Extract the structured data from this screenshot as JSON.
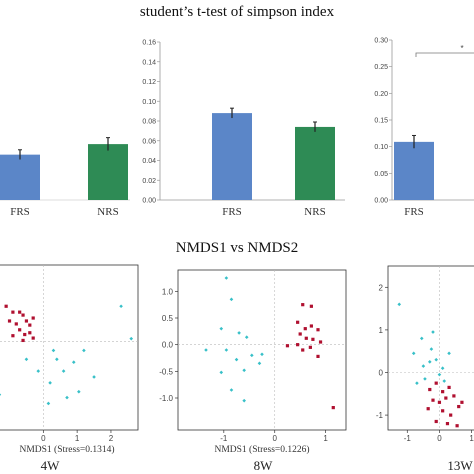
{
  "top_title": "student’s t-test of simpson index",
  "bottom_title": "NMDS1 vs NMDS2",
  "colors": {
    "frs": "#5b86c8",
    "nrs": "#2e8b55",
    "red": "#b01030",
    "cyan": "#38c0c8",
    "err": "#222222"
  },
  "chart_data": [
    {
      "type": "bar",
      "panel": "4W",
      "categories": [
        "FRS",
        "NRS"
      ],
      "values": [
        0.056,
        0.069
      ],
      "errors": [
        0.006,
        0.008
      ],
      "ylim": [
        0,
        0.2
      ],
      "yticks": []
    },
    {
      "type": "bar",
      "panel": "8W",
      "categories": [
        "FRS",
        "NRS"
      ],
      "values": [
        0.088,
        0.074
      ],
      "errors": [
        0.005,
        0.005
      ],
      "ylim": [
        0,
        0.16
      ],
      "yticks": [
        0,
        0.02,
        0.04,
        0.06,
        0.08,
        0.1,
        0.12,
        0.14,
        0.16
      ],
      "ytick_labels": [
        "0.00",
        "0.02",
        "0.04",
        "0.06",
        "0.08",
        "0.10",
        "0.12",
        "0.14",
        "0.16"
      ]
    },
    {
      "type": "bar",
      "panel": "13W",
      "categories": [
        "FRS"
      ],
      "values": [
        0.109
      ],
      "errors": [
        0.012
      ],
      "ylim": [
        0,
        0.3
      ],
      "yticks": [
        0,
        0.05,
        0.1,
        0.15,
        0.2,
        0.25,
        0.3
      ],
      "ytick_labels": [
        "0.00",
        "0.05",
        "0.10",
        "0.15",
        "0.20",
        "0.25",
        "0.30"
      ],
      "significance_marker": "*"
    },
    {
      "type": "scatter",
      "panel": "4W",
      "xlabel": "NMDS1  (Stress=0.1314)",
      "xlim": [
        -1.4,
        2.8
      ],
      "ylim": [
        -1.5,
        1.3
      ],
      "xticks": [
        0,
        1,
        2
      ],
      "xtick_labels": [
        "0",
        "1",
        "2"
      ],
      "yticks": [],
      "red": [
        [
          -1.1,
          0.6
        ],
        [
          -0.9,
          0.5
        ],
        [
          -0.6,
          0.45
        ],
        [
          -0.5,
          0.35
        ],
        [
          -1.0,
          0.35
        ],
        [
          -0.8,
          0.3
        ],
        [
          -0.7,
          0.2
        ],
        [
          -0.55,
          0.12
        ],
        [
          -0.4,
          0.28
        ],
        [
          -0.3,
          0.4
        ],
        [
          -0.9,
          0.1
        ],
        [
          -0.6,
          0.02
        ],
        [
          -0.3,
          0.06
        ],
        [
          -0.7,
          0.5
        ],
        [
          -0.4,
          0.15
        ]
      ],
      "cyan": [
        [
          1.2,
          -0.15
        ],
        [
          0.9,
          -0.35
        ],
        [
          0.6,
          -0.5
        ],
        [
          1.05,
          -0.85
        ],
        [
          0.4,
          -0.3
        ],
        [
          0.2,
          -0.7
        ],
        [
          0.7,
          -0.95
        ],
        [
          0.15,
          -1.05
        ],
        [
          -0.15,
          -0.5
        ],
        [
          -0.5,
          -0.3
        ],
        [
          2.6,
          0.05
        ],
        [
          2.3,
          0.6
        ],
        [
          -1.3,
          -0.9
        ],
        [
          0.3,
          -0.15
        ],
        [
          1.5,
          -0.6
        ]
      ]
    },
    {
      "type": "scatter",
      "panel": "8W",
      "xlabel": "NMDS1  (Stress=0.1226)",
      "xlim": [
        -1.9,
        1.4
      ],
      "ylim": [
        -1.6,
        1.4
      ],
      "xticks": [
        -1,
        0,
        1
      ],
      "xtick_labels": [
        "-1",
        "0",
        "1"
      ],
      "yticks": [
        1.0,
        0.5,
        0.0,
        -0.5,
        -1.0
      ],
      "ytick_labels": [
        "1.0",
        "0.5",
        "0.0",
        "-0.5",
        "-1.0"
      ],
      "red": [
        [
          0.55,
          0.75
        ],
        [
          0.72,
          0.72
        ],
        [
          0.45,
          0.42
        ],
        [
          0.6,
          0.3
        ],
        [
          0.72,
          0.35
        ],
        [
          0.85,
          0.28
        ],
        [
          0.5,
          0.2
        ],
        [
          0.62,
          0.12
        ],
        [
          0.75,
          0.1
        ],
        [
          0.9,
          0.05
        ],
        [
          0.45,
          0.0
        ],
        [
          0.7,
          -0.05
        ],
        [
          0.55,
          -0.1
        ],
        [
          0.25,
          -0.02
        ],
        [
          0.85,
          -0.22
        ],
        [
          1.15,
          -1.18
        ]
      ],
      "cyan": [
        [
          -0.95,
          1.25
        ],
        [
          -0.85,
          0.85
        ],
        [
          -1.05,
          0.3
        ],
        [
          -0.7,
          0.22
        ],
        [
          -0.55,
          0.14
        ],
        [
          -0.95,
          -0.1
        ],
        [
          -0.45,
          -0.2
        ],
        [
          -0.75,
          -0.28
        ],
        [
          -0.25,
          -0.18
        ],
        [
          -1.05,
          -0.52
        ],
        [
          -0.6,
          -0.48
        ],
        [
          -0.85,
          -0.85
        ],
        [
          -0.6,
          -1.05
        ],
        [
          -1.35,
          -0.1
        ],
        [
          -0.3,
          -0.35
        ]
      ]
    },
    {
      "type": "scatter",
      "panel": "13W",
      "xlabel": "",
      "xlim": [
        -1.6,
        1.2
      ],
      "ylim": [
        -1.35,
        2.5
      ],
      "xticks": [
        -1,
        0,
        1
      ],
      "xtick_labels": [
        "-1",
        "0",
        "1"
      ],
      "yticks": [
        2,
        1,
        0,
        -1
      ],
      "ytick_labels": [
        "2",
        "1",
        "0",
        "-1"
      ],
      "red": [
        [
          -0.3,
          -0.4
        ],
        [
          -0.1,
          -0.25
        ],
        [
          0.1,
          -0.45
        ],
        [
          0.3,
          -0.35
        ],
        [
          -0.2,
          -0.65
        ],
        [
          0.0,
          -0.7
        ],
        [
          0.2,
          -0.6
        ],
        [
          0.45,
          -0.55
        ],
        [
          -0.35,
          -0.85
        ],
        [
          0.1,
          -0.9
        ],
        [
          0.35,
          -1.0
        ],
        [
          0.6,
          -0.8
        ],
        [
          -0.1,
          -1.15
        ],
        [
          0.25,
          -1.2
        ],
        [
          0.55,
          -1.25
        ],
        [
          0.7,
          -0.7
        ]
      ],
      "cyan": [
        [
          -0.2,
          0.95
        ],
        [
          -1.25,
          1.6
        ],
        [
          -0.8,
          0.45
        ],
        [
          -0.5,
          0.15
        ],
        [
          -0.3,
          0.25
        ],
        [
          -0.1,
          0.3
        ],
        [
          0.0,
          -0.05
        ],
        [
          -0.45,
          -0.15
        ],
        [
          -0.7,
          -0.25
        ],
        [
          0.15,
          -0.2
        ],
        [
          -0.25,
          0.55
        ],
        [
          0.3,
          0.45
        ],
        [
          -0.55,
          0.8
        ],
        [
          0.1,
          0.1
        ]
      ]
    }
  ],
  "panel_labels": [
    "4W",
    "8W",
    "13W"
  ]
}
